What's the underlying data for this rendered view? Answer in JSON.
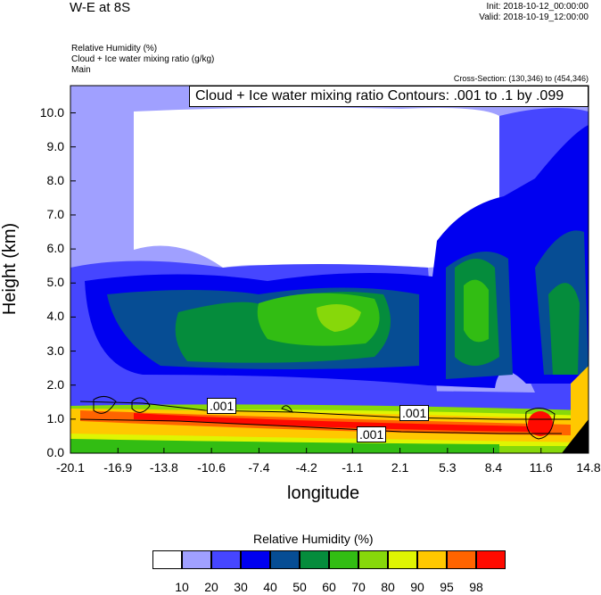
{
  "header": {
    "title": "W-E at 8S",
    "init": "Init: 2018-10-12_00:00:00",
    "valid": "Valid: 2018-10-19_12:00:00",
    "fields": [
      "Relative Humidity   (%)",
      "Cloud + Ice water mixing ratio   (g/kg)",
      "Main"
    ],
    "cross_section": "Cross-Section: (130,346) to (454,346)"
  },
  "chart_data": {
    "type": "heatmap",
    "subtype": "filled contour cross-section with line contours",
    "contour_info": "Cloud + Ice water mixing ratio Contours: .001 to .1 by .099",
    "xlabel": "longitude",
    "ylabel": "Height (km)",
    "xticks": [
      "-20.1",
      "-16.9",
      "-13.8",
      "-10.6",
      "-7.4",
      "-4.2",
      "-1.1",
      "2.1",
      "5.3",
      "8.4",
      "11.6",
      "14.8"
    ],
    "yticks": [
      "0.0",
      "1.0",
      "2.0",
      "3.0",
      "4.0",
      "5.0",
      "6.0",
      "7.0",
      "8.0",
      "9.0",
      "10.0"
    ],
    "xlim": [
      -20.1,
      14.8
    ],
    "ylim": [
      0,
      10.8
    ],
    "contour_labels": [
      ".001",
      ".001",
      ".001"
    ],
    "colorbar": {
      "title": "Relative Humidity  (%)",
      "levels": [
        "10",
        "20",
        "30",
        "40",
        "50",
        "60",
        "70",
        "80",
        "90",
        "95",
        "98"
      ],
      "colors": [
        "#ffffff",
        "#a0a0ff",
        "#4646ff",
        "#0000f0",
        "#064d94",
        "#058c3c",
        "#32bd13",
        "#87d80a",
        "#dff502",
        "#ffc800",
        "#ff6400",
        "#ff0a00"
      ]
    }
  }
}
